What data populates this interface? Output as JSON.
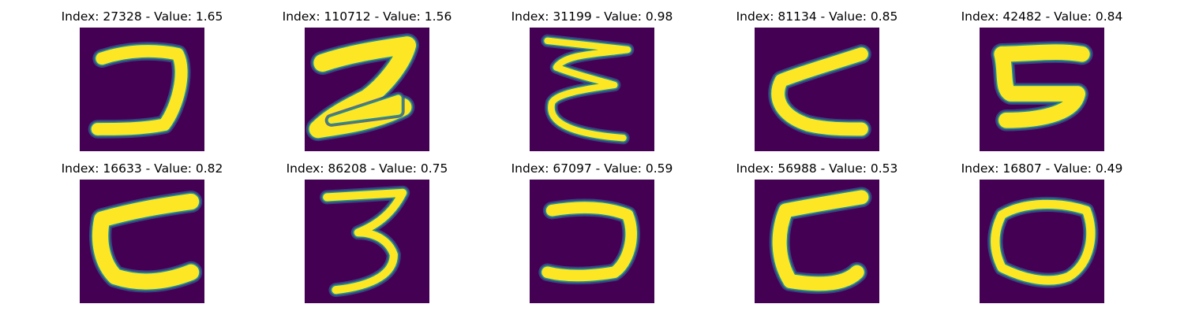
{
  "colors": {
    "background": "#440154",
    "mid": "#21918c",
    "edge": "#3b528b",
    "stroke": "#fde725"
  },
  "panels": [
    {
      "title": "Index: 27328 - Value: 1.65",
      "glyph": "reversed-c-hook"
    },
    {
      "title": "Index: 110712 - Value: 1.56",
      "glyph": "z-shape"
    },
    {
      "title": "Index: 31199 - Value: 0.98",
      "glyph": "zigzag-e"
    },
    {
      "title": "Index: 81134 - Value: 0.85",
      "glyph": "open-c"
    },
    {
      "title": "Index: 42482 - Value: 0.84",
      "glyph": "bracket-c"
    },
    {
      "title": "Index: 16633 - Value: 0.82",
      "glyph": "c-shape"
    },
    {
      "title": "Index: 86208 - Value: 0.75",
      "glyph": "three"
    },
    {
      "title": "Index: 67097 - Value: 0.59",
      "glyph": "reversed-c"
    },
    {
      "title": "Index: 56988 - Value: 0.53",
      "glyph": "hooked-c"
    },
    {
      "title": "Index: 16807 - Value: 0.49",
      "glyph": "oval"
    }
  ]
}
